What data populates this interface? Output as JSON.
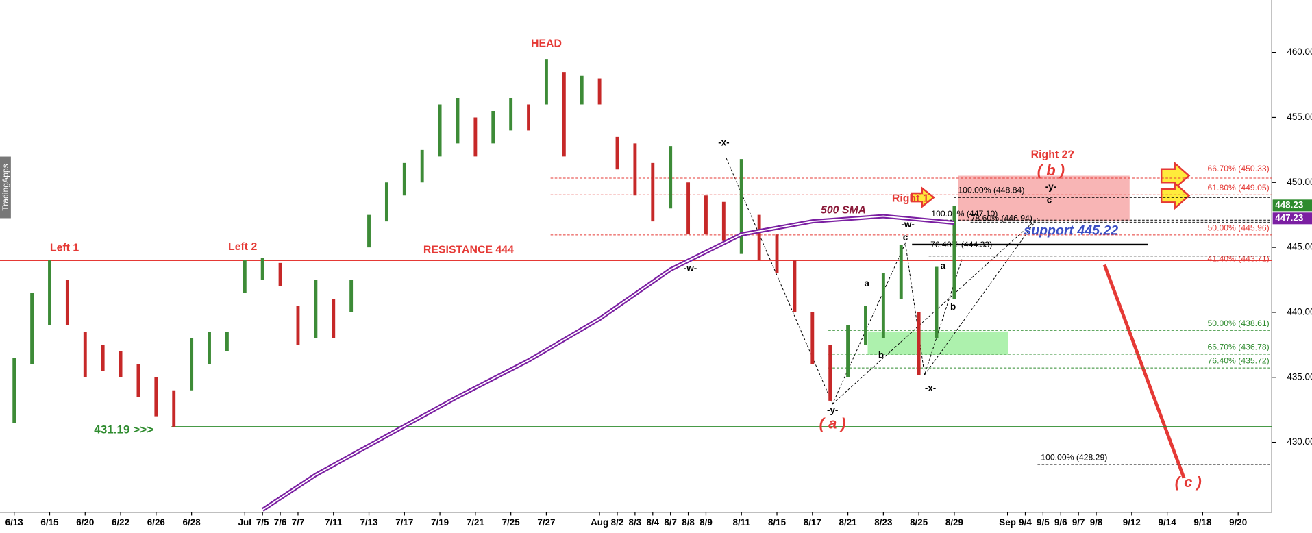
{
  "watermark": "TradingApps",
  "chart_data": {
    "type": "ohlc",
    "x": [
      0,
      1,
      2,
      3,
      4,
      5,
      6,
      7,
      8,
      9,
      10,
      11,
      12,
      13,
      14,
      15,
      16,
      17,
      18,
      19,
      20,
      21,
      22,
      23,
      24,
      25,
      26,
      27,
      28,
      29,
      30,
      31,
      32,
      33,
      34,
      35,
      36,
      37,
      38,
      39,
      40,
      41,
      42,
      43,
      44,
      45,
      46,
      47,
      48,
      49,
      50,
      51,
      52,
      53
    ],
    "high": [
      436.5,
      441.5,
      444,
      442.5,
      438.5,
      437.5,
      437,
      436,
      435,
      434,
      438,
      438.5,
      438.5,
      444,
      444.2,
      443.8,
      440.5,
      442.5,
      441,
      442.5,
      447.5,
      450,
      451.5,
      452.5,
      456,
      456.5,
      455,
      455.5,
      456.5,
      456,
      459.5,
      458.5,
      458.2,
      458,
      453.5,
      453,
      451.5,
      452.8,
      450,
      449,
      448.5,
      451.8,
      447.5,
      446,
      444,
      440,
      437.5,
      439,
      440.5,
      443,
      445.2,
      440,
      443.5,
      448.2
    ],
    "low": [
      431.5,
      436,
      439,
      439,
      435,
      435.5,
      435,
      433.5,
      432,
      431.2,
      434,
      436,
      437,
      441.5,
      442.5,
      442,
      437.5,
      438,
      438,
      440,
      445,
      447,
      449,
      450,
      452,
      453,
      452,
      453,
      454,
      454,
      456,
      452,
      456,
      456,
      451,
      449,
      447,
      448,
      446,
      446,
      445.5,
      444.5,
      444,
      443,
      440,
      436,
      433.2,
      435,
      437.5,
      438,
      441,
      435.2,
      438,
      441
    ],
    "up_color": "#3d8b37",
    "down_color": "#c62828",
    "series": [
      {
        "name": "500 SMA",
        "color": "#7b1fa2",
        "x": [
          14,
          17,
          21,
          25,
          29,
          33,
          37,
          41,
          45,
          49,
          53
        ],
        "values": [
          424.8,
          427.5,
          430.5,
          433.5,
          436.3,
          439.5,
          443.3,
          446,
          447,
          447.4,
          446.9
        ]
      }
    ],
    "xlim": [
      -0.8,
      70.9
    ],
    "xticks": [
      {
        "value": 0,
        "label": "6/13"
      },
      {
        "value": 2,
        "label": "6/15"
      },
      {
        "value": 4,
        "label": "6/20"
      },
      {
        "value": 6,
        "label": "6/22"
      },
      {
        "value": 8,
        "label": "6/26"
      },
      {
        "value": 10,
        "label": "6/28"
      },
      {
        "value": 13,
        "label": "Jul"
      },
      {
        "value": 14,
        "label": "7/5"
      },
      {
        "value": 15,
        "label": "7/6"
      },
      {
        "value": 16,
        "label": "7/7"
      },
      {
        "value": 18,
        "label": "7/11"
      },
      {
        "value": 20,
        "label": "7/13"
      },
      {
        "value": 22,
        "label": "7/17"
      },
      {
        "value": 24,
        "label": "7/19"
      },
      {
        "value": 26,
        "label": "7/21"
      },
      {
        "value": 28,
        "label": "7/25"
      },
      {
        "value": 30,
        "label": "7/27"
      },
      {
        "value": 33,
        "label": "Aug"
      },
      {
        "value": 34,
        "label": "8/2"
      },
      {
        "value": 35,
        "label": "8/3"
      },
      {
        "value": 36,
        "label": "8/4"
      },
      {
        "value": 37,
        "label": "8/7"
      },
      {
        "value": 38,
        "label": "8/8"
      },
      {
        "value": 39,
        "label": "8/9"
      },
      {
        "value": 41,
        "label": "8/11"
      },
      {
        "value": 43,
        "label": "8/15"
      },
      {
        "value": 45,
        "label": "8/17"
      },
      {
        "value": 47,
        "label": "8/21"
      },
      {
        "value": 49,
        "label": "8/23"
      },
      {
        "value": 51,
        "label": "8/25"
      },
      {
        "value": 53,
        "label": "8/29"
      },
      {
        "value": 56,
        "label": "Sep"
      },
      {
        "value": 57,
        "label": "9/4"
      },
      {
        "value": 58,
        "label": "9/5"
      },
      {
        "value": 59,
        "label": "9/6"
      },
      {
        "value": 60,
        "label": "9/7"
      },
      {
        "value": 61,
        "label": "9/8"
      },
      {
        "value": 63,
        "label": "9/12"
      },
      {
        "value": 65,
        "label": "9/14"
      },
      {
        "value": 67,
        "label": "9/18"
      },
      {
        "value": 69,
        "label": "9/20"
      }
    ],
    "ylim": [
      424.62,
      464.04
    ],
    "yticks": [
      {
        "value": 430,
        "label": "430.00"
      },
      {
        "value": 435,
        "label": "435.00"
      },
      {
        "value": 440,
        "label": "440.00"
      },
      {
        "value": 445,
        "label": "445.00"
      },
      {
        "value": 450,
        "label": "450.00"
      },
      {
        "value": 455,
        "label": "455.00"
      },
      {
        "value": 460,
        "label": "460.00"
      }
    ],
    "price_tags": [
      {
        "value": 448.23,
        "color": "#2e8b2e"
      },
      {
        "value": 447.23,
        "color": "#7b1fa2"
      }
    ],
    "levels": [
      {
        "label": "RESISTANCE 444",
        "value": 444,
        "color": "#e53935",
        "style": "solid"
      },
      {
        "label": "431.19 >>>",
        "value": 431.19,
        "color": "#2e8b2e",
        "style": "solid"
      },
      {
        "label": "support 445.22",
        "value": 445.22,
        "color": "#000000",
        "style": "solid"
      },
      {
        "label": "66.70% (450.33)",
        "value": 450.33,
        "color": "#e53935",
        "style": "dashed"
      },
      {
        "label": "61.80% (449.05)",
        "value": 449.05,
        "color": "#e53935",
        "style": "dashed"
      },
      {
        "label": "50.00% (445.96)",
        "value": 445.96,
        "color": "#e53935",
        "style": "dashed"
      },
      {
        "label": "41.40% (443.71)",
        "value": 443.71,
        "color": "#e53935",
        "style": "dashed"
      },
      {
        "label": "50.00% (438.61)",
        "value": 438.61,
        "color": "#2e8b2e",
        "style": "dashed"
      },
      {
        "label": "66.70% (436.78)",
        "value": 436.78,
        "color": "#2e8b2e",
        "style": "dashed"
      },
      {
        "label": "76.40% (435.72)",
        "value": 435.72,
        "color": "#2e8b2e",
        "style": "dashed"
      },
      {
        "label": "100.00% (448.84)",
        "value": 448.84,
        "color": "#000000",
        "style": "dashed"
      },
      {
        "label": "100.00% (447.10)",
        "value": 447.1,
        "color": "#000000",
        "style": "dashed"
      },
      {
        "label": "78.60% (446.94)",
        "value": 446.94,
        "color": "#000000",
        "style": "dashed"
      },
      {
        "label": "76.40% (444.33)",
        "value": 444.33,
        "color": "#000000",
        "style": "dashed"
      },
      {
        "label": "100.00% (428.29)",
        "value": 428.29,
        "color": "#000000",
        "style": "dashed"
      }
    ],
    "annotations": [
      {
        "text": "HEAD",
        "color": "#e53935"
      },
      {
        "text": "Left 1",
        "color": "#e53935"
      },
      {
        "text": "Left 2",
        "color": "#e53935"
      },
      {
        "text": "Right 1",
        "color": "#e53935"
      },
      {
        "text": "Right 2?",
        "color": "#e53935"
      },
      {
        "text": "( b )",
        "color": "#e53935"
      },
      {
        "text": "500 SMA",
        "color": "#8b1a3a"
      },
      {
        "text": "-x-",
        "color": "#000000"
      },
      {
        "text": "-w-",
        "color": "#000000"
      },
      {
        "text": "-y-",
        "color": "#000000"
      },
      {
        "text": "( a )",
        "color": "#e53935"
      },
      {
        "text": "-w-",
        "color": "#000000"
      },
      {
        "text": "c",
        "color": "#000000"
      },
      {
        "text": "a",
        "color": "#000000"
      },
      {
        "text": "b",
        "color": "#000000"
      },
      {
        "text": "-x-",
        "color": "#000000"
      },
      {
        "text": "a",
        "color": "#000000"
      },
      {
        "text": "b",
        "color": "#000000"
      },
      {
        "text": "-y-",
        "color": "#000000"
      },
      {
        "text": "c",
        "color": "#000000"
      },
      {
        "text": "( c )",
        "color": "#e53935"
      }
    ]
  }
}
